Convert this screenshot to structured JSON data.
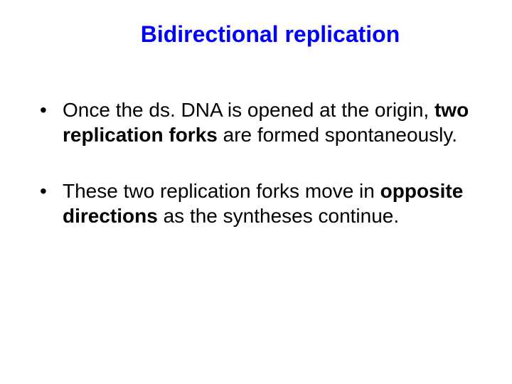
{
  "slide": {
    "title": "Bidirectional replication",
    "title_color": "#0000ff",
    "title_fontsize": 32,
    "body_fontsize": 28,
    "text_color": "#000000",
    "background_color": "#ffffff",
    "bullets": [
      {
        "runs": [
          {
            "text": "Once the ds. DNA is opened at the origin, ",
            "bold": false
          },
          {
            "text": "two replication forks",
            "bold": true
          },
          {
            "text": " are formed spontaneously.",
            "bold": false
          }
        ]
      },
      {
        "runs": [
          {
            "text": "These two replication forks move in ",
            "bold": false
          },
          {
            "text": "opposite directions",
            "bold": true
          },
          {
            "text": " as the syntheses continue.",
            "bold": false
          }
        ]
      }
    ]
  }
}
